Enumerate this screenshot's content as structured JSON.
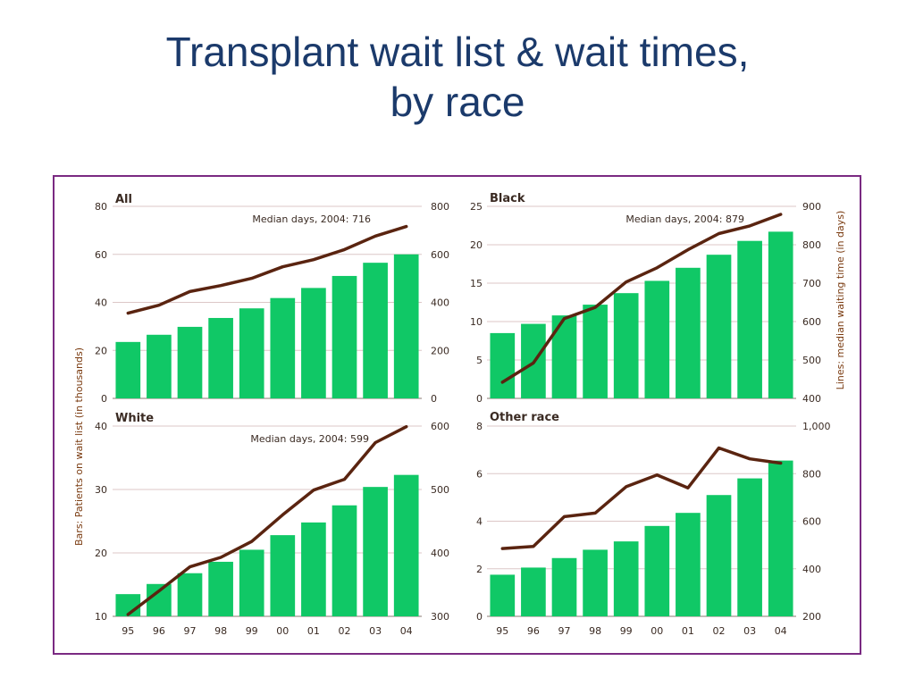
{
  "slide": {
    "title_line1": "Transplant wait list & wait times,",
    "title_line2": "by race"
  },
  "colors": {
    "bar": "#10c866",
    "line": "#5a2410",
    "grid": "#dcc7c7",
    "frame": "#7a2a82",
    "title": "#1b3a6b"
  },
  "left_axis_label": "Bars: Patients on wait list (in thousands)",
  "right_axis_label": "Lines: median waiting time (in days)",
  "chart_data": [
    {
      "type": "bar+line",
      "title": "All",
      "annotation": "Median days, 2004: 716",
      "categories": [
        "95",
        "96",
        "97",
        "98",
        "99",
        "00",
        "01",
        "02",
        "03",
        "04"
      ],
      "show_xticks": false,
      "bars": {
        "values": [
          23.5,
          26.5,
          29.8,
          33.5,
          37.5,
          41.8,
          46,
          51,
          56.5,
          60
        ]
      },
      "line": {
        "values": [
          355,
          388,
          445,
          470,
          500,
          548,
          578,
          620,
          676,
          716
        ]
      },
      "y_left": {
        "range": [
          0,
          80
        ],
        "ticks": [
          "0",
          "20",
          "40",
          "60",
          "80"
        ]
      },
      "y_right": {
        "range": [
          0,
          800
        ],
        "ticks": [
          "0",
          "200",
          "400",
          "600",
          "800"
        ]
      }
    },
    {
      "type": "bar+line",
      "title": "Black",
      "annotation": "Median days, 2004: 879",
      "categories": [
        "95",
        "96",
        "97",
        "98",
        "99",
        "00",
        "01",
        "02",
        "03",
        "04"
      ],
      "show_xticks": false,
      "bars": {
        "values": [
          8.5,
          9.7,
          10.8,
          12.2,
          13.7,
          15.3,
          17,
          18.7,
          20.5,
          21.7
        ]
      },
      "line": {
        "values": [
          442,
          492,
          608,
          637,
          703,
          740,
          787,
          829,
          849,
          879
        ]
      },
      "y_left": {
        "range": [
          0,
          25
        ],
        "ticks": [
          "0",
          "5",
          "10",
          "15",
          "20",
          "25"
        ]
      },
      "y_right": {
        "range": [
          400,
          900
        ],
        "ticks": [
          "400",
          "500",
          "600",
          "700",
          "800",
          "900"
        ]
      }
    },
    {
      "type": "bar+line",
      "title": "White",
      "annotation": "Median days, 2004: 599",
      "categories": [
        "95",
        "96",
        "97",
        "98",
        "99",
        "00",
        "01",
        "02",
        "03",
        "04"
      ],
      "show_xticks": true,
      "bars": {
        "values": [
          13.5,
          15.1,
          16.8,
          18.6,
          20.5,
          22.8,
          24.8,
          27.5,
          30.4,
          32.3
        ]
      },
      "line": {
        "values": [
          303,
          340,
          378,
          393,
          418,
          460,
          499,
          516,
          574,
          599
        ]
      },
      "y_left": {
        "range": [
          10,
          40
        ],
        "ticks": [
          "10",
          "20",
          "30",
          "40"
        ]
      },
      "y_right": {
        "range": [
          300,
          600
        ],
        "ticks": [
          "300",
          "400",
          "500",
          "600"
        ]
      }
    },
    {
      "type": "bar+line",
      "title": "Other race",
      "annotation": "",
      "categories": [
        "95",
        "96",
        "97",
        "98",
        "99",
        "00",
        "01",
        "02",
        "03",
        "04"
      ],
      "show_xticks": true,
      "bars": {
        "values": [
          1.75,
          2.05,
          2.45,
          2.8,
          3.15,
          3.8,
          4.35,
          5.1,
          5.8,
          6.55
        ]
      },
      "line": {
        "values": [
          485,
          494,
          619,
          634,
          745,
          794,
          740,
          908,
          862,
          844
        ]
      },
      "y_left": {
        "range": [
          0,
          8
        ],
        "ticks": [
          "0",
          "2",
          "4",
          "6",
          "8"
        ]
      },
      "y_right": {
        "range": [
          200,
          1000
        ],
        "ticks": [
          "200",
          "400",
          "600",
          "800",
          "1,000"
        ]
      }
    }
  ]
}
